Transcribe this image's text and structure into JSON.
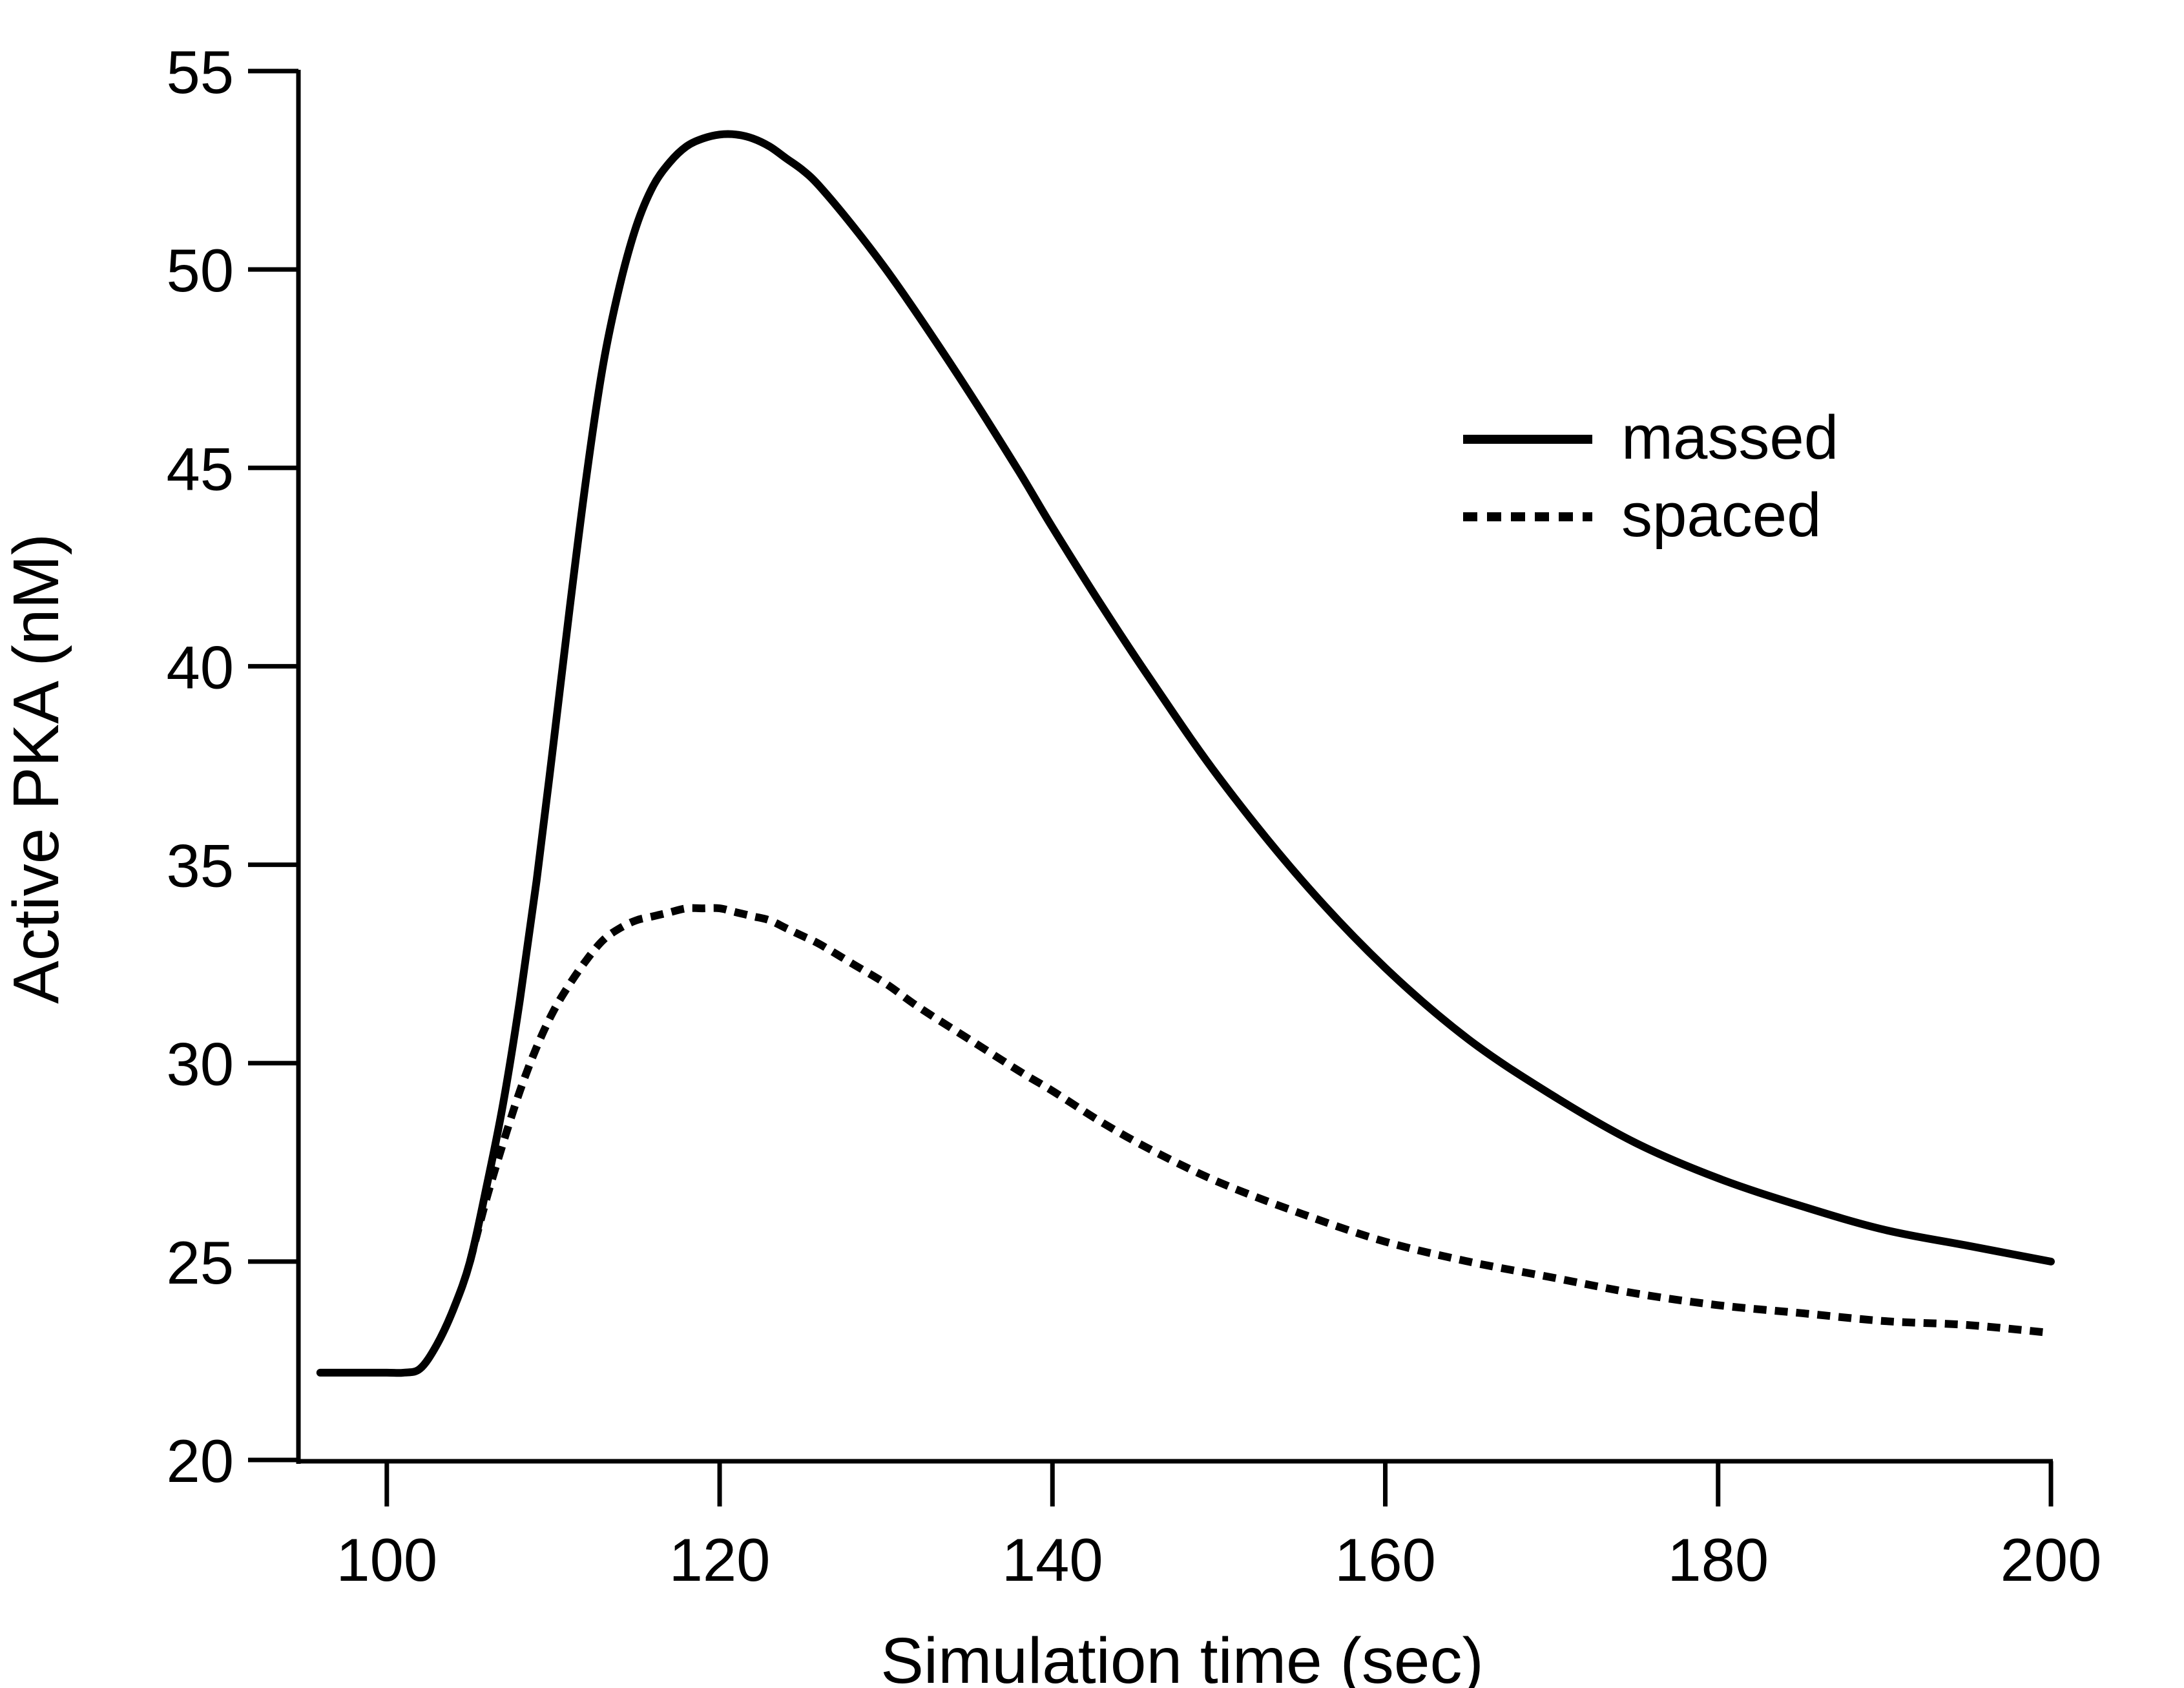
{
  "chart_data": {
    "type": "line",
    "title": "",
    "xlabel": "Simulation time (sec)",
    "ylabel": "Active PKA (nM)",
    "xlim": [
      95,
      200
    ],
    "ylim": [
      20,
      55
    ],
    "xticks": [
      100,
      120,
      140,
      160,
      180,
      200
    ],
    "yticks": [
      20,
      25,
      30,
      35,
      40,
      45,
      50,
      55
    ],
    "x_tick_labels": [
      "100",
      "120",
      "140",
      "160",
      "180",
      "200"
    ],
    "y_tick_labels": [
      "20",
      "25",
      "30",
      "35",
      "40",
      "45",
      "50",
      "55"
    ],
    "grid": false,
    "legend_position": "upper-right",
    "colors": {
      "line": "#000000",
      "background": "#ffffff"
    },
    "series": [
      {
        "name": "massed",
        "style": "solid",
        "x": [
          96,
          98,
          100,
          101,
          102,
          103,
          104,
          105,
          106,
          107,
          108,
          109,
          110,
          111,
          112,
          113,
          114,
          115,
          116,
          117,
          118,
          119,
          120,
          121,
          122,
          123,
          124,
          125,
          126,
          128,
          130,
          132,
          135,
          138,
          140,
          143,
          146,
          150,
          155,
          160,
          165,
          170,
          175,
          180,
          185,
          190,
          195,
          200
        ],
        "y": [
          22.2,
          22.2,
          22.2,
          22.2,
          22.3,
          22.9,
          23.8,
          25.0,
          26.9,
          29.0,
          31.6,
          34.6,
          38.0,
          41.5,
          44.8,
          47.6,
          49.6,
          51.1,
          52.1,
          52.7,
          53.1,
          53.3,
          53.4,
          53.4,
          53.3,
          53.1,
          52.8,
          52.5,
          52.1,
          51.1,
          50.0,
          48.8,
          46.9,
          44.9,
          43.5,
          41.5,
          39.6,
          37.2,
          34.6,
          32.4,
          30.6,
          29.2,
          28.0,
          27.1,
          26.4,
          25.8,
          25.4,
          25.0
        ]
      },
      {
        "name": "spaced",
        "style": "dotted",
        "x": [
          105,
          106,
          107,
          108,
          109,
          110,
          111,
          112,
          113,
          114,
          115,
          116,
          117,
          118,
          119,
          120,
          121,
          122,
          123,
          124,
          125,
          126,
          128,
          130,
          132,
          135,
          138,
          140,
          143,
          146,
          150,
          155,
          160,
          165,
          170,
          175,
          180,
          185,
          190,
          195,
          200
        ],
        "y": [
          25.0,
          26.6,
          28.0,
          29.3,
          30.4,
          31.3,
          32.0,
          32.6,
          33.1,
          33.4,
          33.6,
          33.7,
          33.8,
          33.9,
          33.9,
          33.9,
          33.8,
          33.7,
          33.6,
          33.4,
          33.2,
          33.0,
          32.5,
          32.0,
          31.4,
          30.6,
          29.8,
          29.3,
          28.5,
          27.8,
          27.0,
          26.2,
          25.5,
          25.0,
          24.6,
          24.2,
          23.9,
          23.7,
          23.5,
          23.4,
          23.2
        ]
      }
    ]
  }
}
